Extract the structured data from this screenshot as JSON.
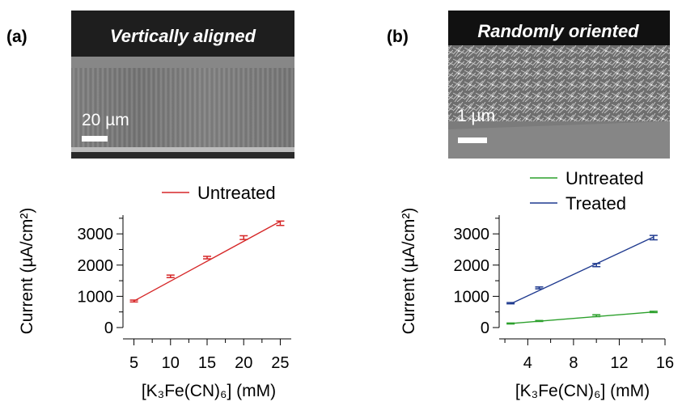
{
  "panels": [
    {
      "label": "(a)",
      "micrograph_caption": "Vertically aligned",
      "scale_bar_label": "20 µm"
    },
    {
      "label": "(b)",
      "micrograph_caption": "Randomly oriented",
      "scale_bar_label": "1 µm"
    }
  ],
  "chart_data": [
    {
      "type": "line",
      "ylabel": "Current (µA/cm²)",
      "xlabel": "[K₃Fe(CN)₆] (mM)",
      "xlim": [
        3.5,
        26.5
      ],
      "ylim": [
        0,
        3600
      ],
      "xticks": [
        5,
        10,
        15,
        20,
        25
      ],
      "yticks": [
        0,
        1000,
        2000,
        3000
      ],
      "legend_position": "top-right",
      "series": [
        {
          "name": "Untreated",
          "color": "#d62728",
          "x": [
            5,
            10,
            15,
            20,
            25
          ],
          "y": [
            850,
            1640,
            2240,
            2880,
            3340
          ],
          "error": [
            30,
            40,
            40,
            60,
            70
          ],
          "fit": [
            [
              5,
              850
            ],
            [
              25,
              3400
            ]
          ]
        }
      ]
    },
    {
      "type": "line",
      "ylabel": "Current (µA/cm²)",
      "xlabel": "[K₃Fe(CN)₆] (mM)",
      "xlim": [
        1.5,
        16
      ],
      "ylim": [
        0,
        3600
      ],
      "xticks": [
        4,
        8,
        12,
        16
      ],
      "yticks": [
        0,
        1000,
        2000,
        3000
      ],
      "legend_position": "top-right",
      "series": [
        {
          "name": "Untreated",
          "color": "#2ca02c",
          "x": [
            2.5,
            5,
            10,
            15
          ],
          "y": [
            130,
            210,
            380,
            500
          ],
          "error": [
            15,
            15,
            30,
            20
          ],
          "fit": [
            [
              2.5,
              130
            ],
            [
              15,
              500
            ]
          ]
        },
        {
          "name": "Treated",
          "color": "#1f3a8f",
          "x": [
            2.5,
            5,
            10,
            15
          ],
          "y": [
            780,
            1270,
            2000,
            2880
          ],
          "error": [
            20,
            30,
            50,
            70
          ],
          "fit": [
            [
              2.5,
              760
            ],
            [
              15,
              2900
            ]
          ]
        }
      ]
    }
  ]
}
